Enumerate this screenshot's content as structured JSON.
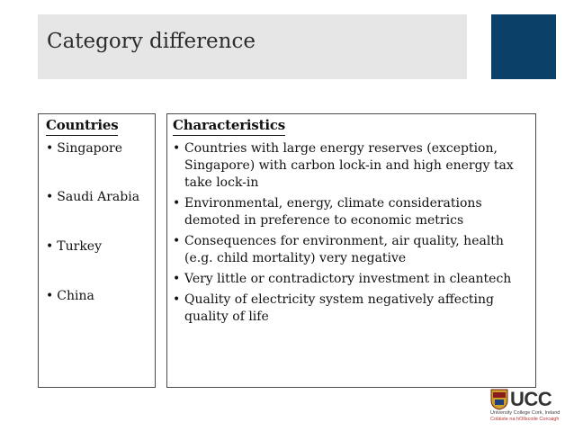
{
  "slide": {
    "title": "Category difference"
  },
  "countries": {
    "header": "Countries",
    "items": [
      "Singapore",
      "Saudi Arabia",
      "Turkey",
      "China"
    ]
  },
  "characteristics": {
    "header": "Characteristics",
    "items": [
      "Countries with large energy reserves (exception, Singapore) with carbon lock-in and high energy tax take lock-in",
      "Environmental, energy, climate considerations demoted in preference to economic metrics",
      "Consequences for environment, air quality, health (e.g. child mortality) very negative",
      "Very little or contradictory investment in cleantech",
      "Quality of electricity system negatively affecting quality of life"
    ]
  },
  "logo": {
    "name": "UCC",
    "line1": "University College Cork, Ireland",
    "line2": "Coláiste na hOllscoile Corcaigh"
  },
  "colors": {
    "title_bar": "#e6e6e6",
    "accent_square": "#0b4168",
    "border": "#4a4a4a"
  }
}
